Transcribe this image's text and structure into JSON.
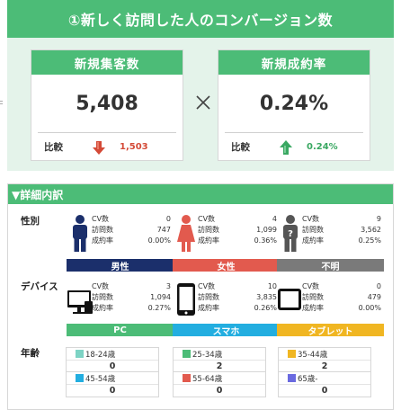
{
  "header": {
    "title": "①新しく訪問した人のコンバージョン数"
  },
  "cards": [
    {
      "title": "新規集客数",
      "value": "5,408",
      "compare_label": "比較",
      "compare_value": "1,503",
      "trend": "down",
      "trend_color": "#d44a37"
    },
    {
      "title": "新規成約率",
      "value": "0.24%",
      "compare_label": "比較",
      "compare_value": "0.24%",
      "trend": "up",
      "trend_color": "#3aa862"
    }
  ],
  "operator": "×",
  "detail": {
    "title": "▼詳細内訳",
    "gender": {
      "label": "性別",
      "items": [
        {
          "name": "男性",
          "cv_label": "CV数",
          "cv": "0",
          "visits_label": "訪問数",
          "visits": "747",
          "rate_label": "成約率",
          "rate": "0.00%",
          "color": "#1b2f6b",
          "icon": "male-person-icon"
        },
        {
          "name": "女性",
          "cv_label": "CV数",
          "cv": "4",
          "visits_label": "訪問数",
          "visits": "1,099",
          "rate_label": "成約率",
          "rate": "0.36%",
          "color": "#e25a4e",
          "icon": "female-person-icon"
        },
        {
          "name": "不明",
          "cv_label": "CV数",
          "cv": "9",
          "visits_label": "訪問数",
          "visits": "3,562",
          "rate_label": "成約率",
          "rate": "0.25%",
          "color": "#7a7a7a",
          "icon": "unknown-person-icon"
        }
      ]
    },
    "device": {
      "label": "デバイス",
      "items": [
        {
          "name": "PC",
          "cv_label": "CV数",
          "cv": "3",
          "visits_label": "訪問数",
          "visits": "1,094",
          "rate_label": "成約率",
          "rate": "0.27%",
          "color": "#4cbc77",
          "icon": "desktop-pc-icon"
        },
        {
          "name": "スマホ",
          "cv_label": "CV数",
          "cv": "10",
          "visits_label": "訪問数",
          "visits": "3,835",
          "rate_label": "成約率",
          "rate": "0.26%",
          "color": "#23aee0",
          "icon": "smartphone-icon"
        },
        {
          "name": "タブレット",
          "cv_label": "CV数",
          "cv": "0",
          "visits_label": "訪問数",
          "visits": "479",
          "rate_label": "成約率",
          "rate": "0.00%",
          "color": "#f0b622",
          "icon": "tablet-icon"
        }
      ]
    },
    "age": {
      "label": "年齢",
      "groups": [
        {
          "range": "18-24歳",
          "value": "0",
          "color": "#7dd3c4"
        },
        {
          "range": "25-34歳",
          "value": "2",
          "color": "#4cbc77"
        },
        {
          "range": "35-44歳",
          "value": "2",
          "color": "#f0b622"
        },
        {
          "range": "45-54歳",
          "value": "0",
          "color": "#23aee0"
        },
        {
          "range": "55-64歳",
          "value": "0",
          "color": "#e25a4e"
        },
        {
          "range": "65歳-",
          "value": "0",
          "color": "#6a6ae0"
        }
      ]
    }
  }
}
